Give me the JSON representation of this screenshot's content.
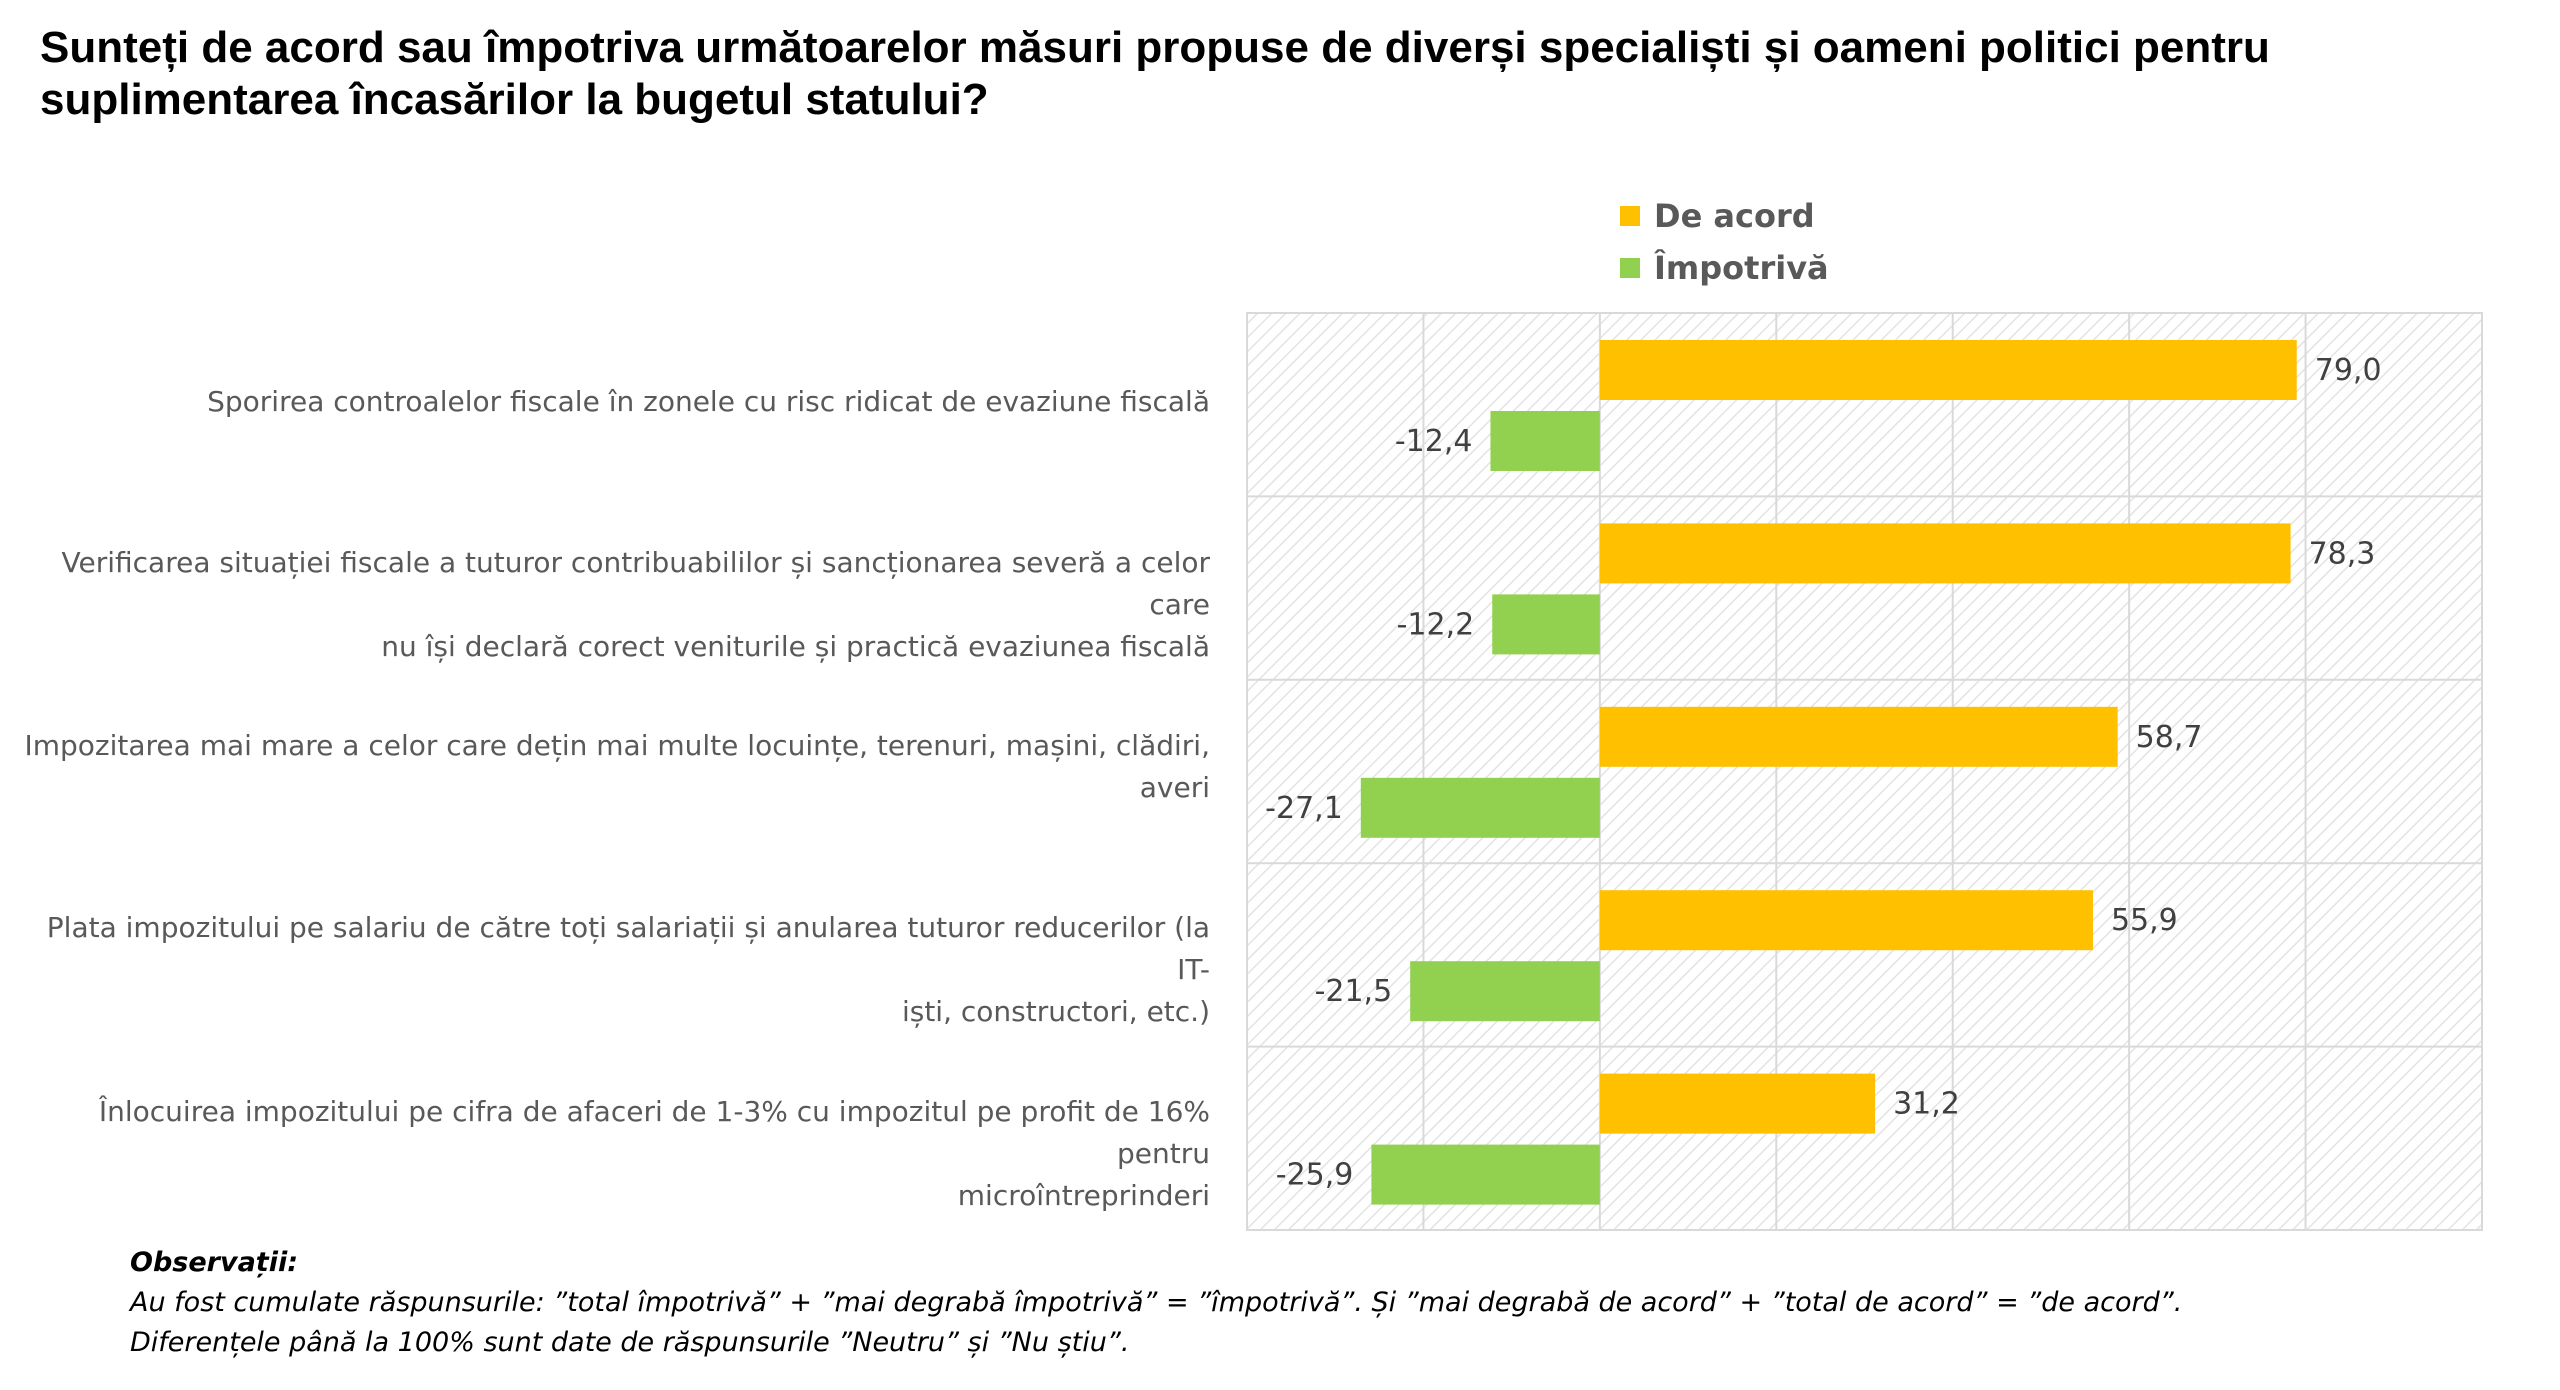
{
  "title": {
    "line1": "Sunteți de acord sau împotriva următoarelor măsuri propuse de diverși specialiști și oameni politici pentru",
    "line2": "suplimentarea încasărilor la bugetul statului?"
  },
  "legend": {
    "items": [
      {
        "label": "De acord",
        "color": "#FFC000"
      },
      {
        "label": "Împotrivă",
        "color": "#92D050"
      }
    ]
  },
  "chart_data": {
    "type": "bar",
    "orientation": "horizontal",
    "categories": [
      [
        "Sporirea controalelor fiscale în zonele cu risc ridicat de evaziune fiscală"
      ],
      [
        "Verificarea situației fiscale a tuturor contribuabililor și sancționarea severă a celor care",
        "nu își declară corect veniturile și practică evaziunea fiscală"
      ],
      [
        "Impozitarea mai mare a celor care dețin mai multe locuințe, terenuri, mașini, clădiri,",
        "averi"
      ],
      [
        "Plata impozitului pe salariu de către toți salariații și anularea tuturor reducerilor (la IT-",
        "iști, constructori, etc.)"
      ],
      [
        "Înlocuirea impozitului pe cifra de afaceri de 1-3% cu impozitul pe profit de 16% pentru",
        "microîntreprinderi"
      ]
    ],
    "series": [
      {
        "name": "De acord",
        "color": "#FFC000",
        "values": [
          79.0,
          78.3,
          58.7,
          55.9,
          31.2
        ],
        "labels": [
          "79,0",
          "78,3",
          "58,7",
          "55,9",
          "31,2"
        ]
      },
      {
        "name": "Împotrivă",
        "color": "#92D050",
        "values": [
          -12.4,
          -12.2,
          -27.1,
          -21.5,
          -25.9
        ],
        "labels": [
          "-12,4",
          "-12,2",
          "-27,1",
          "-21,5",
          "-25,9"
        ]
      }
    ],
    "xlim": [
      -40,
      100
    ],
    "grid": true,
    "legend_position": "top"
  },
  "notes": {
    "title": "Observații:",
    "line1": "Au fost cumulate răspunsurile: ”total împotrivă” + ”mai degrabă împotrivă” = ”împotrivă”. Și ”mai degrabă de acord” + ”total de acord” = ”de acord”.",
    "line2": "Diferențele până la 100% sunt date de răspunsurile ”Neutru” și ”Nu știu”."
  }
}
